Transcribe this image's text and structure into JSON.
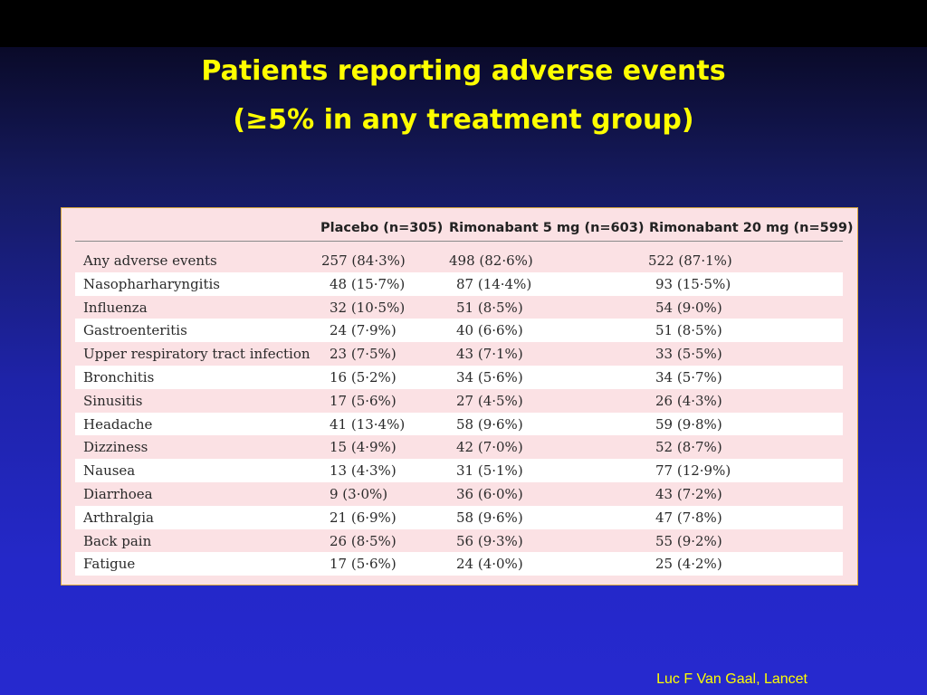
{
  "slide": {
    "title_line1": "Patients reporting adverse events",
    "title_line2": "(≥5% in any treatment group)",
    "credit": "Luc F Van Gaal, Lancet"
  },
  "table": {
    "headers": [
      "",
      "Placebo (n=305)",
      "Rimonabant 5 mg (n=603)",
      "Rimonabant 20 mg (n=599)"
    ],
    "rows": [
      [
        "Any adverse events",
        "257 (84·3%)",
        "498 (82·6%)",
        "522 (87·1%)"
      ],
      [
        "Nasopharharyngitis",
        "48 (15·7%)",
        "87 (14·4%)",
        "93 (15·5%)"
      ],
      [
        "Influenza",
        "32 (10·5%)",
        "51 (8·5%)",
        "54 (9·0%)"
      ],
      [
        "Gastroenteritis",
        "24 (7·9%)",
        "40 (6·6%)",
        "51 (8·5%)"
      ],
      [
        "Upper respiratory tract infection",
        "23 (7·5%)",
        "43 (7·1%)",
        "33 (5·5%)"
      ],
      [
        "Bronchitis",
        "16 (5·2%)",
        "34 (5·6%)",
        "34 (5·7%)"
      ],
      [
        "Sinusitis",
        "17 (5·6%)",
        "27 (4·5%)",
        "26 (4·3%)"
      ],
      [
        "Headache",
        "41 (13·4%)",
        "58 (9·6%)",
        "59 (9·8%)"
      ],
      [
        "Dizziness",
        "15 (4·9%)",
        "42 (7·0%)",
        "52 (8·7%)"
      ],
      [
        "Nausea",
        "13 (4·3%)",
        "31 (5·1%)",
        "77 (12·9%)"
      ],
      [
        "Diarrhoea",
        "9 (3·0%)",
        "36 (6·0%)",
        "43 (7·2%)"
      ],
      [
        "Arthralgia",
        "21 (6·9%)",
        "58 (9·6%)",
        "47 (7·8%)"
      ],
      [
        "Back pain",
        "26 (8·5%)",
        "56 (9·3%)",
        "55 (9·2%)"
      ],
      [
        "Fatigue",
        "17 (5·6%)",
        "24 (4·0%)",
        "25 (4·2%)"
      ]
    ]
  },
  "colors": {
    "title": "#ffff00",
    "table_background": "#fbe1e4",
    "table_alt_row": "#ffffff",
    "table_border": "#d7a63a"
  }
}
